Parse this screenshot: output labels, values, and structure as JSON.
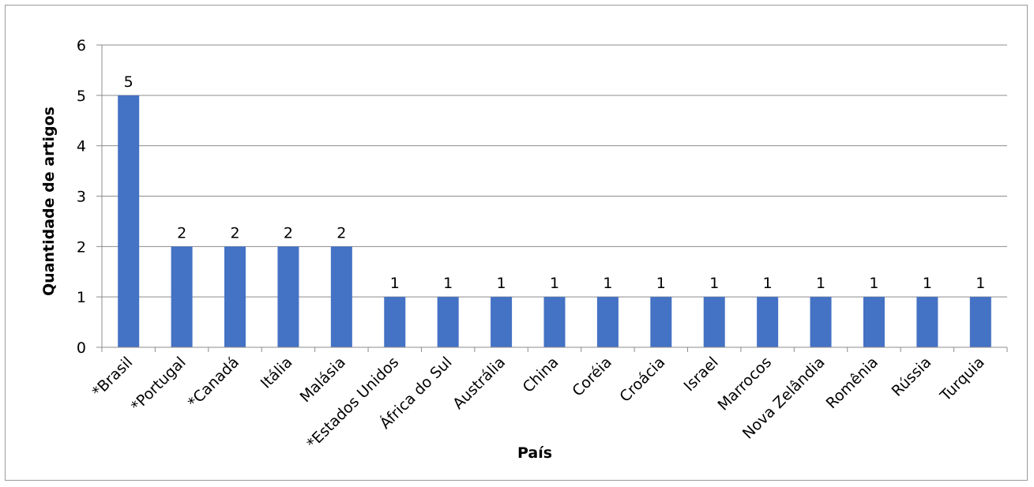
{
  "chart_data": {
    "type": "bar",
    "xlabel": "País",
    "ylabel": "Quantidade de artigos",
    "categories": [
      "*Brasil",
      "*Portugal",
      "*Canadá",
      "Itália",
      "Malásia",
      "*Estados Unidos",
      "África do Sul",
      "Austrália",
      "China",
      "Coréia",
      "Croácia",
      "Israel",
      "Marrocos",
      "Nova Zelândia",
      "Romênia",
      "Rússia",
      "Turquia"
    ],
    "values": [
      5,
      2,
      2,
      2,
      2,
      1,
      1,
      1,
      1,
      1,
      1,
      1,
      1,
      1,
      1,
      1,
      1
    ],
    "ylim": [
      0,
      6
    ],
    "yticks": [
      "0",
      "1",
      "2",
      "3",
      "4",
      "5",
      "6"
    ],
    "grid": true,
    "data_labels": true,
    "bar_color": "#4472C4"
  }
}
